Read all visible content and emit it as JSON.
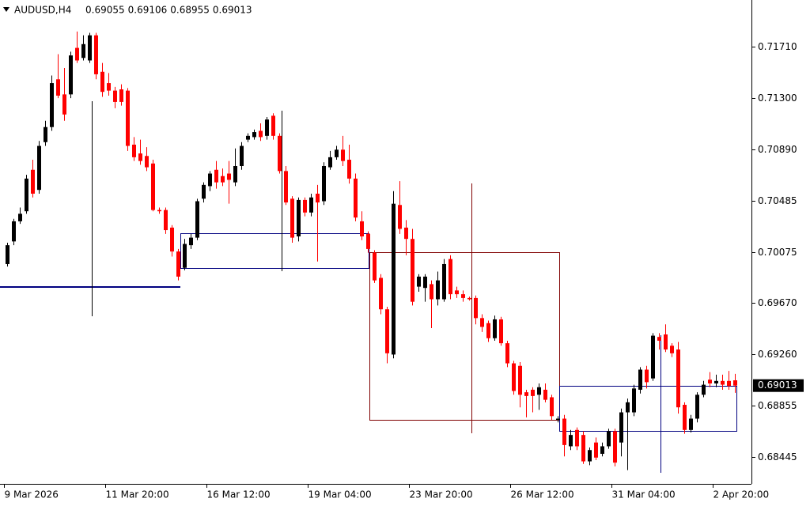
{
  "chart_data": {
    "type": "candlestick",
    "title": "AUDUSD,H4",
    "ylim": [
      0.68231,
      0.72081
    ],
    "yticks": [
      {
        "value": 0.7171,
        "label": "0.71710"
      },
      {
        "value": 0.713,
        "label": "0.71300"
      },
      {
        "value": 0.7089,
        "label": "0.70890"
      },
      0.70485,
      {
        "value": 0.70075,
        "label": "0.70075"
      },
      {
        "value": 0.6967,
        "label": "0.69670"
      },
      {
        "value": 0.6926,
        "label": "0.69260"
      },
      0.68855,
      0.68445
    ],
    "xticks": [
      {
        "value": 0,
        "label": "9 Mar 2026"
      },
      {
        "value": 16,
        "label": "11 Mar 20:00"
      },
      {
        "value": 32,
        "label": "16 Mar 12:00"
      },
      {
        "value": 48,
        "label": "19 Mar 04:00"
      },
      {
        "value": 64,
        "label": "23 Mar 20:00"
      },
      {
        "value": 80,
        "label": "26 Mar 12:00"
      },
      {
        "value": 96,
        "label": "31 Mar 04:00"
      },
      {
        "value": 112,
        "label": "2 Apr 20:00"
      }
    ],
    "up_color": "#000000",
    "down_color": "#ff0000",
    "candles": [
      [
        0.6998,
        0.7015,
        0.6996,
        0.7013
      ],
      [
        0.7016,
        0.7034,
        0.7013,
        0.7032
      ],
      [
        0.7032,
        0.7043,
        0.703,
        0.7038
      ],
      [
        0.704,
        0.7069,
        0.7038,
        0.7066
      ],
      [
        0.7073,
        0.7081,
        0.7051,
        0.7054
      ],
      [
        0.7057,
        0.7096,
        0.7054,
        0.7092
      ],
      [
        0.7095,
        0.7112,
        0.7092,
        0.7107
      ],
      [
        0.7107,
        0.7148,
        0.7104,
        0.7142
      ],
      [
        0.7145,
        0.7165,
        0.713,
        0.7132
      ],
      [
        0.7133,
        0.7154,
        0.7112,
        0.7117
      ],
      [
        0.7133,
        0.7167,
        0.713,
        0.7164
      ],
      [
        0.717,
        0.7183,
        0.7158,
        0.716
      ],
      [
        0.7162,
        0.718,
        0.716,
        0.7173
      ],
      [
        0.716,
        0.7182,
        0.7158,
        0.718
      ],
      [
        0.718,
        0.7182,
        0.7145,
        0.7149
      ],
      [
        0.7151,
        0.7158,
        0.7131,
        0.7135
      ],
      [
        0.7142,
        0.715,
        0.7132,
        0.7136
      ],
      [
        0.7136,
        0.7139,
        0.7122,
        0.7127
      ],
      [
        0.7137,
        0.7141,
        0.7124,
        0.7127
      ],
      [
        0.7136,
        0.7138,
        0.7088,
        0.7092
      ],
      [
        0.7093,
        0.7099,
        0.708,
        0.7083
      ],
      [
        0.7086,
        0.7097,
        0.7077,
        0.708
      ],
      [
        0.7084,
        0.7091,
        0.7072,
        0.7075
      ],
      [
        0.7078,
        0.7081,
        0.704,
        0.7041
      ],
      [
        0.7041,
        0.7043,
        0.7038,
        0.704
      ],
      [
        0.7041,
        0.7043,
        0.7022,
        0.7025
      ],
      [
        0.7027,
        0.7029,
        0.7004,
        0.7008
      ],
      [
        0.7008,
        0.701,
        0.6985,
        0.6988
      ],
      [
        0.6995,
        0.7018,
        0.6993,
        0.7014
      ],
      [
        0.7013,
        0.7022,
        0.701,
        0.7019
      ],
      [
        0.7019,
        0.705,
        0.7017,
        0.7048
      ],
      [
        0.705,
        0.7063,
        0.7047,
        0.7061
      ],
      [
        0.706,
        0.7072,
        0.7056,
        0.707
      ],
      [
        0.7073,
        0.708,
        0.7058,
        0.7063
      ],
      [
        0.7068,
        0.7074,
        0.706,
        0.7063
      ],
      [
        0.707,
        0.708,
        0.7046,
        0.7065
      ],
      [
        0.7063,
        0.709,
        0.706,
        0.7076
      ],
      [
        0.7076,
        0.7095,
        0.7073,
        0.7092
      ],
      [
        0.7097,
        0.7102,
        0.7095,
        0.71
      ],
      [
        0.7099,
        0.7105,
        0.7097,
        0.7103
      ],
      [
        0.7104,
        0.711,
        0.7096,
        0.7099
      ],
      [
        0.71,
        0.7115,
        0.7097,
        0.7113
      ],
      [
        0.7116,
        0.7118,
        0.7097,
        0.71
      ],
      [
        0.71,
        0.7102,
        0.707,
        0.7072
      ],
      [
        0.7072,
        0.7076,
        0.7045,
        0.7047
      ],
      [
        0.705,
        0.7052,
        0.7015,
        0.7019
      ],
      [
        0.702,
        0.7051,
        0.7016,
        0.7049
      ],
      [
        0.7049,
        0.7051,
        0.7036,
        0.7039
      ],
      [
        0.7039,
        0.7054,
        0.7036,
        0.7051
      ],
      [
        0.7054,
        0.7061,
        0.7,
        0.7047
      ],
      [
        0.7048,
        0.7079,
        0.7045,
        0.7076
      ],
      [
        0.7075,
        0.7088,
        0.7073,
        0.7083
      ],
      [
        0.7083,
        0.7092,
        0.7081,
        0.7089
      ],
      [
        0.7089,
        0.71,
        0.7076,
        0.708
      ],
      [
        0.7081,
        0.7093,
        0.7062,
        0.7066
      ],
      [
        0.7066,
        0.707,
        0.7032,
        0.7035
      ],
      [
        0.7032,
        0.704,
        0.7017,
        0.702
      ],
      [
        0.7022,
        0.7024,
        0.7007,
        0.701
      ],
      [
        0.7007,
        0.7009,
        0.6983,
        0.6985
      ],
      [
        0.6987,
        0.699,
        0.6958,
        0.6962
      ],
      [
        0.6962,
        0.6964,
        0.6919,
        0.6927
      ],
      [
        0.6926,
        0.7056,
        0.6923,
        0.7046
      ],
      [
        0.7045,
        0.7064,
        0.7022,
        0.7026
      ],
      [
        0.7027,
        0.7033,
        0.7005,
        0.7018
      ],
      [
        0.7018,
        0.7026,
        0.6965,
        0.6968
      ],
      [
        0.698,
        0.699,
        0.6976,
        0.6988
      ],
      [
        0.6979,
        0.699,
        0.6968,
        0.6988
      ],
      [
        0.6982,
        0.6985,
        0.6947,
        0.697
      ],
      [
        0.697,
        0.6992,
        0.6965,
        0.6985
      ],
      [
        0.697,
        0.7002,
        0.6968,
        0.6998
      ],
      [
        0.7002,
        0.7005,
        0.697,
        0.6974
      ],
      [
        0.6977,
        0.698,
        0.6971,
        0.6974
      ],
      [
        0.6974,
        0.6977,
        0.6968,
        0.6971
      ],
      [
        0.6971,
        0.6972,
        0.6969,
        0.697
      ],
      [
        0.6971,
        0.6973,
        0.695,
        0.6955
      ],
      [
        0.6955,
        0.6958,
        0.6944,
        0.6948
      ],
      [
        0.6951,
        0.6953,
        0.6936,
        0.6939
      ],
      [
        0.6939,
        0.6957,
        0.6937,
        0.6954
      ],
      [
        0.6954,
        0.6956,
        0.6933,
        0.6935
      ],
      [
        0.6935,
        0.6937,
        0.6916,
        0.6919
      ],
      [
        0.6919,
        0.6921,
        0.6894,
        0.6897
      ],
      [
        0.6917,
        0.692,
        0.6884,
        0.6894
      ],
      [
        0.6896,
        0.6898,
        0.6876,
        0.6893
      ],
      [
        0.6898,
        0.69,
        0.688,
        0.6893
      ],
      [
        0.6894,
        0.6903,
        0.6882,
        0.69
      ],
      [
        0.6898,
        0.6903,
        0.6888,
        0.689
      ],
      [
        0.6892,
        0.6894,
        0.6874,
        0.6877
      ],
      [
        0.6874,
        0.6877,
        0.6872,
        0.6875
      ],
      [
        0.6875,
        0.6878,
        0.6845,
        0.6854
      ],
      [
        0.6853,
        0.6866,
        0.685,
        0.6862
      ],
      [
        0.6866,
        0.6868,
        0.685,
        0.6853
      ],
      [
        0.6862,
        0.6865,
        0.6839,
        0.6841
      ],
      [
        0.6841,
        0.6852,
        0.6838,
        0.685
      ],
      [
        0.6856,
        0.686,
        0.6842,
        0.6844
      ],
      [
        0.6847,
        0.6856,
        0.6845,
        0.6853
      ],
      [
        0.6853,
        0.6867,
        0.6851,
        0.6865
      ],
      [
        0.6865,
        0.6867,
        0.6837,
        0.684
      ],
      [
        0.6856,
        0.6883,
        0.6845,
        0.688
      ],
      [
        0.688,
        0.6891,
        0.6834,
        0.6888
      ],
      [
        0.688,
        0.6902,
        0.6877,
        0.6899
      ],
      [
        0.6898,
        0.6916,
        0.6895,
        0.6914
      ],
      [
        0.6914,
        0.6917,
        0.6899,
        0.6904
      ],
      [
        0.6907,
        0.6943,
        0.6905,
        0.6941
      ],
      [
        0.694,
        0.6943,
        0.693,
        0.6937
      ],
      [
        0.6942,
        0.695,
        0.6928,
        0.693
      ],
      [
        0.6933,
        0.6935,
        0.6924,
        0.6927
      ],
      [
        0.693,
        0.6936,
        0.6879,
        0.6884
      ],
      [
        0.6886,
        0.6888,
        0.6863,
        0.6866
      ],
      [
        0.6866,
        0.6878,
        0.6864,
        0.6875
      ],
      [
        0.6875,
        0.6896,
        0.6872,
        0.6894
      ],
      [
        0.6894,
        0.6905,
        0.6892,
        0.6902
      ],
      [
        0.6906,
        0.6912,
        0.69,
        0.6903
      ],
      [
        0.6903,
        0.691,
        0.69,
        0.6905
      ],
      [
        0.6905,
        0.691,
        0.6898,
        0.6902
      ],
      [
        0.6905,
        0.6913,
        0.6898,
        0.6901
      ],
      [
        0.69055,
        0.69106,
        0.68955,
        0.69013
      ]
    ]
  }
}
